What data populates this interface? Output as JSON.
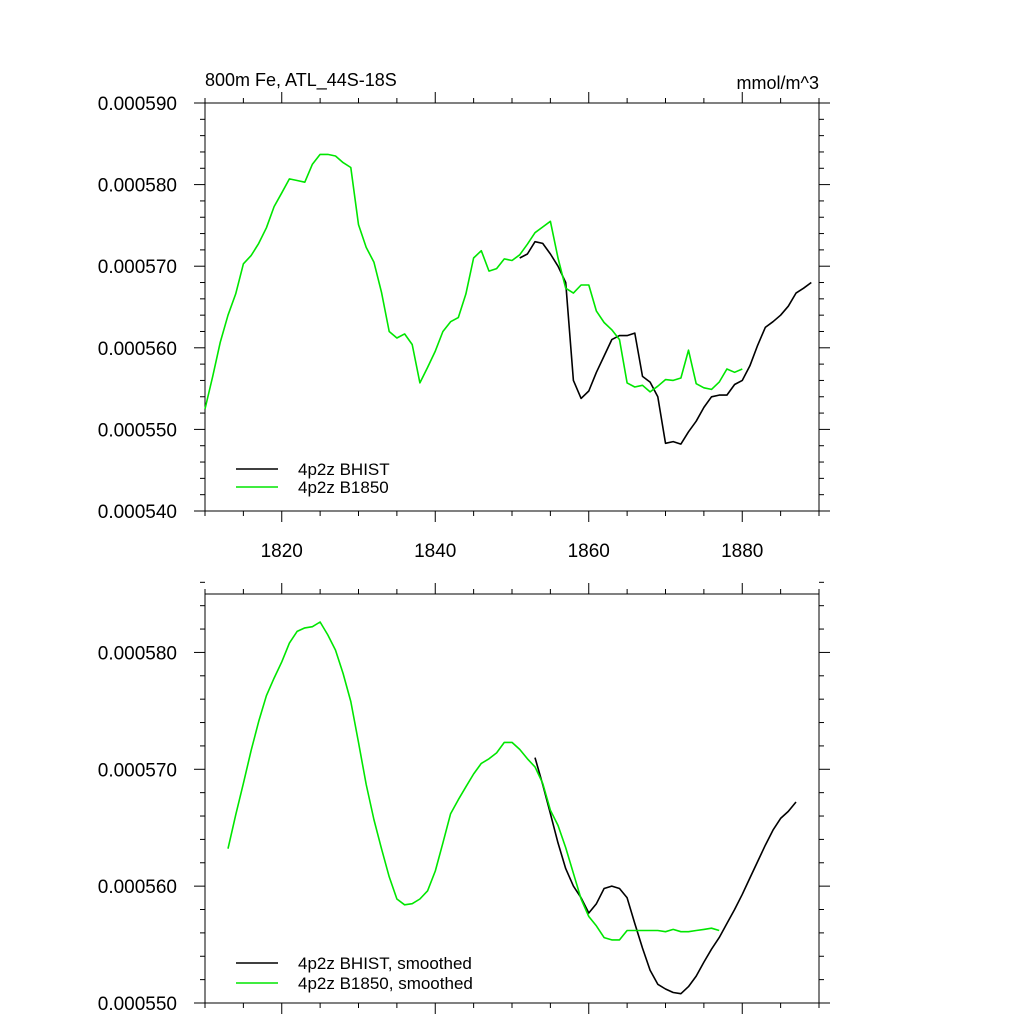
{
  "colors": {
    "bhist": "#000000",
    "b1850": "#00e600",
    "axis": "#000000",
    "background": "#ffffff"
  },
  "chart_data": [
    {
      "type": "line",
      "title": "800m Fe, ATL_44S-18S",
      "units": "mmol/m^3",
      "xlim": [
        1810,
        1890
      ],
      "ylim": [
        0.00054,
        0.00059
      ],
      "xticks": [
        1820,
        1840,
        1860,
        1880
      ],
      "yticks": [
        0.00054,
        0.00055,
        0.00056,
        0.00057,
        0.00058,
        0.00059
      ],
      "ytick_labels": [
        "0.000540",
        "0.000550",
        "0.000560",
        "0.000570",
        "0.000580",
        "0.000590"
      ],
      "xtick_labels": [
        "1820",
        "1840",
        "1860",
        "1880"
      ],
      "show_xtick_labels": true,
      "grid": false,
      "legend_position": "bottom-left",
      "series": [
        {
          "name": "4p2z BHIST",
          "color_key": "bhist",
          "x": [
            1851,
            1852,
            1853,
            1854,
            1855,
            1856,
            1857,
            1858,
            1859,
            1860,
            1861,
            1862,
            1863,
            1864,
            1865,
            1866,
            1867,
            1868,
            1869,
            1870,
            1871,
            1872,
            1873,
            1874,
            1875,
            1876,
            1877,
            1878,
            1879,
            1880,
            1881,
            1882,
            1883,
            1884,
            1885,
            1886,
            1887,
            1888,
            1889
          ],
          "y": [
            0.000571,
            0.0005715,
            0.000573,
            0.0005728,
            0.0005715,
            0.00057,
            0.000568,
            0.000556,
            0.0005538,
            0.0005547,
            0.000557,
            0.000559,
            0.000561,
            0.0005615,
            0.0005615,
            0.0005618,
            0.0005565,
            0.0005558,
            0.000554,
            0.0005483,
            0.0005485,
            0.0005482,
            0.0005497,
            0.000551,
            0.0005527,
            0.000554,
            0.0005542,
            0.0005542,
            0.0005555,
            0.000556,
            0.0005578,
            0.0005603,
            0.0005625,
            0.0005632,
            0.000564,
            0.0005651,
            0.0005667,
            0.0005673,
            0.000568
          ]
        },
        {
          "name": "4p2z B1850",
          "color_key": "b1850",
          "x": [
            1810,
            1811,
            1812,
            1813,
            1814,
            1815,
            1816,
            1817,
            1818,
            1819,
            1820,
            1821,
            1822,
            1823,
            1824,
            1825,
            1826,
            1827,
            1828,
            1829,
            1830,
            1831,
            1832,
            1833,
            1834,
            1835,
            1836,
            1837,
            1838,
            1839,
            1840,
            1841,
            1842,
            1843,
            1844,
            1845,
            1846,
            1847,
            1848,
            1849,
            1850,
            1851,
            1852,
            1853,
            1854,
            1855,
            1856,
            1857,
            1858,
            1859,
            1860,
            1861,
            1862,
            1863,
            1864,
            1865,
            1866,
            1867,
            1868,
            1869,
            1870,
            1871,
            1872,
            1873,
            1874,
            1875,
            1876,
            1877,
            1878,
            1879,
            1880
          ],
          "y": [
            0.0005525,
            0.0005565,
            0.0005607,
            0.000564,
            0.0005666,
            0.0005703,
            0.0005713,
            0.0005728,
            0.0005747,
            0.0005773,
            0.000579,
            0.0005807,
            0.0005805,
            0.0005803,
            0.0005825,
            0.0005837,
            0.0005837,
            0.0005835,
            0.0005827,
            0.0005821,
            0.0005751,
            0.0005723,
            0.0005705,
            0.0005668,
            0.000562,
            0.0005612,
            0.0005617,
            0.0005604,
            0.0005557,
            0.0005576,
            0.0005596,
            0.000562,
            0.0005632,
            0.0005637,
            0.0005666,
            0.000571,
            0.0005719,
            0.0005694,
            0.0005697,
            0.0005709,
            0.0005707,
            0.0005714,
            0.0005727,
            0.0005741,
            0.0005748,
            0.0005755,
            0.000571,
            0.0005673,
            0.0005667,
            0.0005677,
            0.0005677,
            0.0005645,
            0.0005631,
            0.0005622,
            0.000561,
            0.0005557,
            0.0005552,
            0.0005554,
            0.0005546,
            0.0005553,
            0.0005561,
            0.000556,
            0.0005563,
            0.0005597,
            0.0005556,
            0.0005551,
            0.0005549,
            0.0005558,
            0.0005574,
            0.000557,
            0.0005574
          ]
        }
      ]
    },
    {
      "type": "line",
      "title": "",
      "units": "",
      "xlim": [
        1810,
        1890
      ],
      "ylim": [
        0.00055,
        0.000585
      ],
      "xticks": [
        1820,
        1840,
        1860,
        1880
      ],
      "yticks": [
        0.00055,
        0.00056,
        0.00057,
        0.00058
      ],
      "ytick_labels": [
        "0.000550",
        "0.000560",
        "0.000570",
        "0.000580"
      ],
      "xtick_labels": [],
      "show_xtick_labels": false,
      "grid": false,
      "legend_position": "bottom-left",
      "series": [
        {
          "name": "4p2z BHIST, smoothed",
          "color_key": "bhist",
          "x": [
            1853,
            1854,
            1855,
            1856,
            1857,
            1858,
            1859,
            1860,
            1861,
            1862,
            1863,
            1864,
            1865,
            1866,
            1867,
            1868,
            1869,
            1870,
            1871,
            1872,
            1873,
            1874,
            1875,
            1876,
            1877,
            1878,
            1879,
            1880,
            1881,
            1882,
            1883,
            1884,
            1885,
            1886,
            1887
          ],
          "y": [
            0.000571,
            0.0005687,
            0.0005662,
            0.0005637,
            0.0005615,
            0.00056,
            0.000559,
            0.0005577,
            0.0005585,
            0.0005598,
            0.00056,
            0.0005598,
            0.000559,
            0.0005568,
            0.0005547,
            0.0005528,
            0.0005516,
            0.0005512,
            0.0005509,
            0.0005508,
            0.0005514,
            0.0005523,
            0.0005535,
            0.0005546,
            0.0005556,
            0.0005568,
            0.000558,
            0.0005593,
            0.0005607,
            0.0005621,
            0.0005635,
            0.0005648,
            0.0005658,
            0.0005664,
            0.0005672
          ]
        },
        {
          "name": "4p2z B1850, smoothed",
          "color_key": "b1850",
          "x": [
            1813,
            1814,
            1815,
            1816,
            1817,
            1818,
            1819,
            1820,
            1821,
            1822,
            1823,
            1824,
            1825,
            1826,
            1827,
            1828,
            1829,
            1830,
            1831,
            1832,
            1833,
            1834,
            1835,
            1836,
            1837,
            1838,
            1839,
            1840,
            1841,
            1842,
            1843,
            1844,
            1845,
            1846,
            1847,
            1848,
            1849,
            1850,
            1851,
            1852,
            1853,
            1854,
            1855,
            1856,
            1857,
            1858,
            1859,
            1860,
            1861,
            1862,
            1863,
            1864,
            1865,
            1866,
            1867,
            1868,
            1869,
            1870,
            1871,
            1872,
            1873,
            1874,
            1875,
            1876,
            1877
          ],
          "y": [
            0.0005632,
            0.0005661,
            0.0005688,
            0.0005716,
            0.0005741,
            0.0005763,
            0.0005778,
            0.0005792,
            0.0005808,
            0.0005818,
            0.0005821,
            0.0005822,
            0.0005826,
            0.0005815,
            0.0005802,
            0.0005782,
            0.0005758,
            0.0005723,
            0.0005687,
            0.0005657,
            0.0005632,
            0.0005608,
            0.0005589,
            0.0005584,
            0.0005585,
            0.0005589,
            0.0005596,
            0.0005613,
            0.0005637,
            0.0005662,
            0.0005674,
            0.0005685,
            0.0005696,
            0.0005705,
            0.0005709,
            0.0005714,
            0.0005723,
            0.0005723,
            0.0005717,
            0.0005709,
            0.0005702,
            0.0005688,
            0.0005665,
            0.0005652,
            0.0005633,
            0.0005611,
            0.0005589,
            0.0005574,
            0.0005566,
            0.0005556,
            0.0005554,
            0.0005554,
            0.0005562,
            0.0005562,
            0.0005562,
            0.0005562,
            0.0005562,
            0.0005561,
            0.0005563,
            0.0005561,
            0.0005561,
            0.0005562,
            0.0005563,
            0.0005564,
            0.0005562
          ]
        }
      ]
    }
  ]
}
